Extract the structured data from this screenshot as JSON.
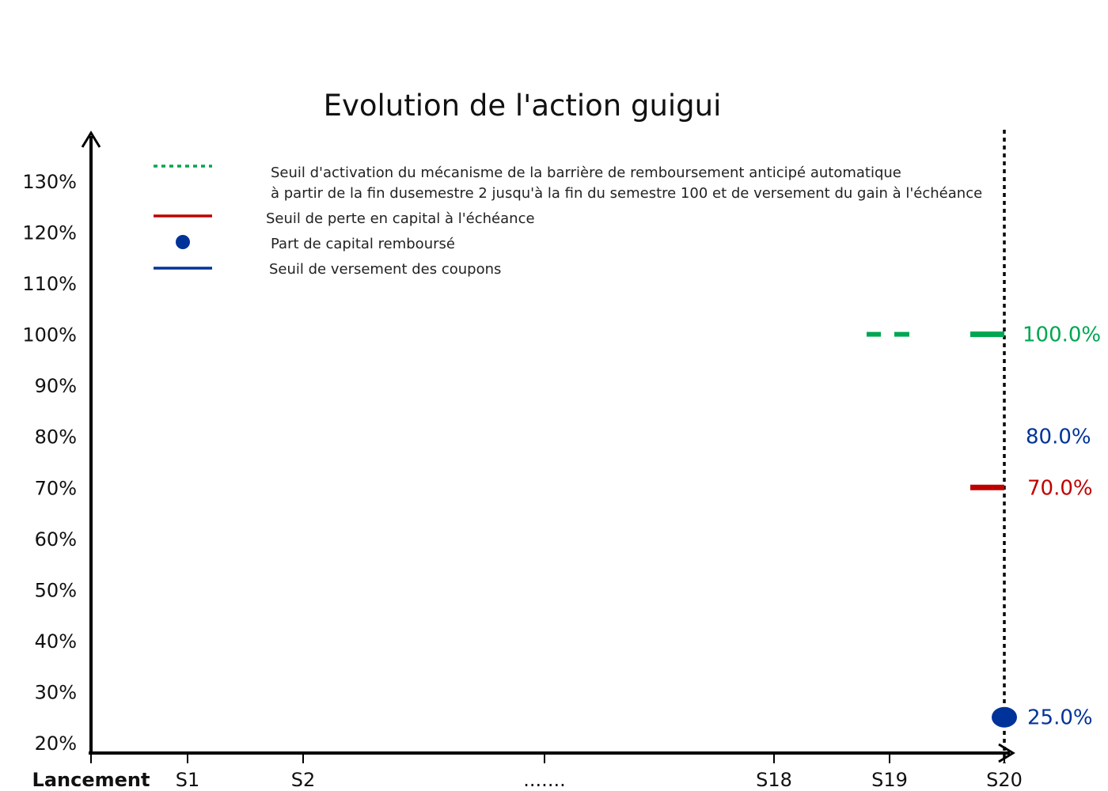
{
  "chart_data": {
    "type": "line",
    "title": "Evolution de l'action guigui",
    "xlabel": "",
    "ylabel": "",
    "ylim": [
      20,
      130
    ],
    "grid": false,
    "y_ticks": [
      "20%",
      "30%",
      "40%",
      "50%",
      "60%",
      "70%",
      "80%",
      "90%",
      "100%",
      "110%",
      "120%",
      "130%"
    ],
    "x_ticks": [
      "Lancement",
      "S1",
      "S2",
      ".......",
      "S18",
      "S19",
      "S20"
    ],
    "legend": [
      {
        "key": "autocall",
        "style": "dotted",
        "color": "#00a651",
        "line1": "Seuil d'activation du mécanisme de la barrière  de remboursement anticipé automatique",
        "line2": " à partir de la fin dusemestre 2 jusqu'à la fin du semestre 100 et de versement du gain à l'échéance"
      },
      {
        "key": "capital_loss",
        "style": "solid",
        "color": "#c00000",
        "line1": "Seuil de perte en capital à l'échéance"
      },
      {
        "key": "capital_repaid",
        "style": "dot",
        "color": "#003399",
        "line1": "Part de capital remboursé"
      },
      {
        "key": "coupon",
        "style": "solid",
        "color": "#003399",
        "line1": "Seuil de versement des coupons"
      }
    ],
    "series": [
      {
        "key": "autocall",
        "name": "Seuil d'activation du mécanisme de la barrière  de remboursement anticipé automatique",
        "value": 100.0,
        "label": "100.0%",
        "color": "#00a651"
      },
      {
        "key": "coupon",
        "name": "Seuil de versement des coupons",
        "value": 80.0,
        "label": "80.0%",
        "color": "#003399"
      },
      {
        "key": "capital_loss",
        "name": "Seuil de perte en capital à l'échéance",
        "value": 70.0,
        "label": "70.0%",
        "color": "#c00000"
      },
      {
        "key": "capital_repaid",
        "name": "Part de capital remboursé",
        "value": 25.0,
        "label": "25.0%",
        "color": "#003399"
      }
    ],
    "maturity_marker": "S20"
  }
}
